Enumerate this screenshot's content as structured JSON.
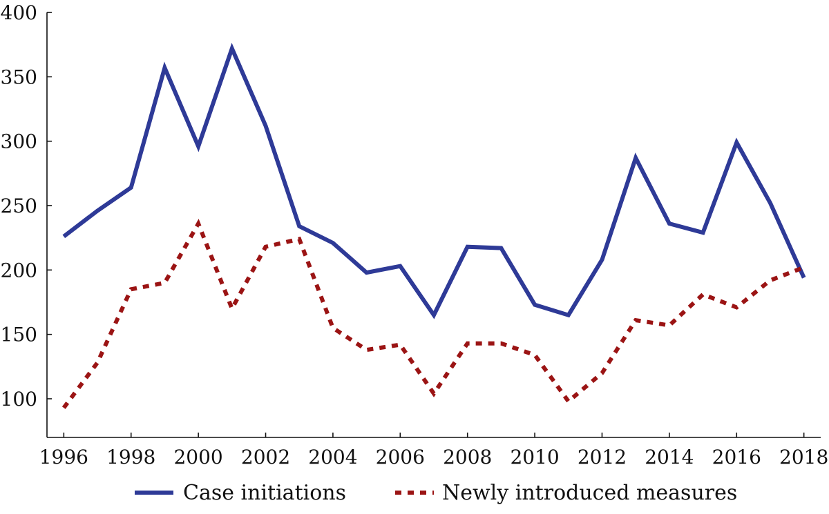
{
  "chart_data": {
    "type": "line",
    "title": "",
    "xlabel": "",
    "ylabel": "",
    "x": [
      1996,
      1997,
      1998,
      1999,
      2000,
      2001,
      2002,
      2003,
      2004,
      2005,
      2006,
      2007,
      2008,
      2009,
      2010,
      2011,
      2012,
      2013,
      2014,
      2015,
      2016,
      2017,
      2018
    ],
    "xlim": [
      1995.5,
      2018.5
    ],
    "ylim": [
      70,
      400
    ],
    "x_ticks": [
      1996,
      1998,
      2000,
      2002,
      2004,
      2006,
      2008,
      2010,
      2012,
      2014,
      2016,
      2018
    ],
    "y_ticks": [
      100,
      150,
      200,
      250,
      300,
      350,
      400
    ],
    "x_tick_labels": [
      "1996",
      "1998",
      "2000",
      "2002",
      "2004",
      "2006",
      "2008",
      "2010",
      "2012",
      "2014",
      "2016",
      "2018"
    ],
    "y_tick_labels": [
      "100",
      "150",
      "200",
      "250",
      "300",
      "350",
      "400"
    ],
    "grid": false,
    "legend_position": "bottom",
    "series": [
      {
        "name": "Case initiations",
        "color": "#2e3a97",
        "style": "solid",
        "values": [
          226,
          246,
          264,
          357,
          296,
          372,
          312,
          234,
          221,
          198,
          203,
          165,
          218,
          217,
          173,
          165,
          208,
          287,
          236,
          229,
          299,
          252,
          194
        ]
      },
      {
        "name": "Newly introduced measures",
        "color": "#9b1414",
        "style": "dotted",
        "values": [
          93,
          128,
          185,
          190,
          236,
          170,
          218,
          224,
          155,
          138,
          142,
          104,
          143,
          143,
          134,
          98,
          120,
          161,
          157,
          181,
          171,
          192,
          202
        ]
      }
    ]
  }
}
